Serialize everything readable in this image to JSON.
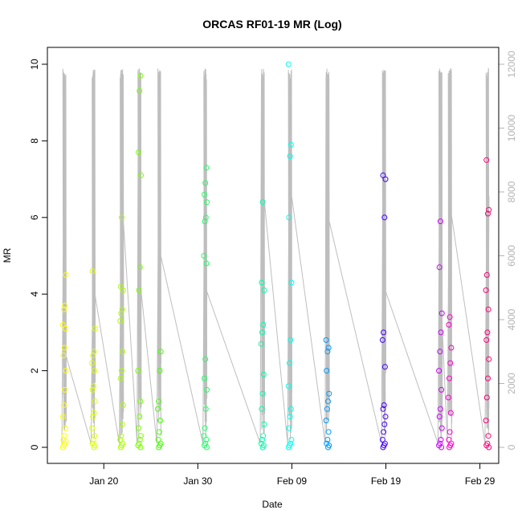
{
  "chart_data": {
    "type": "scatter",
    "title": "ORCAS RF01-19 MR (Log)",
    "xlabel": "Date",
    "ylabel": "MR",
    "ylim": [
      0,
      10
    ],
    "y2lim": [
      0,
      12000
    ],
    "y_ticks": [
      0,
      2,
      4,
      6,
      8,
      10
    ],
    "y2_ticks": [
      0,
      2000,
      4000,
      6000,
      8000,
      10000,
      12000
    ],
    "x_range": [
      "2016-01-14",
      "2016-03-02"
    ],
    "x_ticks": [
      {
        "date": "2016-01-20",
        "label": "Jan 20"
      },
      {
        "date": "2016-01-30",
        "label": "Jan 30"
      },
      {
        "date": "2016-02-09",
        "label": "Feb 09"
      },
      {
        "date": "2016-02-19",
        "label": "Feb 19"
      },
      {
        "date": "2016-02-29",
        "label": "Feb 29"
      }
    ],
    "altitude_line_color": "#bebebe",
    "flights": [
      {
        "date": "2016-01-15.8",
        "color": "#ffff00",
        "values": [
          0,
          0.05,
          0.1,
          0.15,
          0.2,
          0.3,
          0.5,
          0.8,
          1.1,
          1.5,
          2.0,
          2.4,
          2.6,
          3.1,
          3.2,
          3.6,
          3.7,
          4.5
        ]
      },
      {
        "date": "2016-01-18.9",
        "color": "#ddff00",
        "values": [
          0,
          0.05,
          0.1,
          0.2,
          0.3,
          0.5,
          0.8,
          0.9,
          1.2,
          1.5,
          1.6,
          2.0,
          2.2,
          2.4,
          2.5,
          3.1,
          4.6
        ]
      },
      {
        "date": "2016-01-21.9",
        "color": "#aaff00",
        "values": [
          0,
          0.05,
          0.1,
          0.2,
          0.3,
          0.6,
          1.1,
          1.8,
          2.0,
          2.5,
          3.3,
          3.5,
          3.6,
          4.1,
          4.2,
          6.0
        ]
      },
      {
        "date": "2016-01-23.8",
        "color": "#77ff00",
        "values": [
          0,
          0.05,
          0.1,
          0.2,
          0.3,
          0.5,
          0.8,
          1.2,
          2.0,
          4.1,
          4.7,
          7.1,
          7.7,
          9.3,
          9.7
        ]
      },
      {
        "date": "2016-01-25.9",
        "color": "#44ff00",
        "values": [
          0,
          0.05,
          0.1,
          0.2,
          0.4,
          0.7,
          1.0,
          1.2,
          2.0,
          2.5
        ]
      },
      {
        "date": "2016-01-30.8",
        "color": "#22ff66",
        "values": [
          0,
          0.05,
          0.1,
          0.2,
          0.3,
          0.5,
          1.0,
          1.5,
          1.8,
          2.3,
          4.8,
          5.0,
          5.9,
          6.0,
          6.4,
          6.6,
          6.9,
          7.3
        ]
      },
      {
        "date": "2016-02-05.9",
        "color": "#00ffaa",
        "values": [
          0,
          0.05,
          0.1,
          0.2,
          0.3,
          0.6,
          1.0,
          1.4,
          1.9,
          2.7,
          3.0,
          3.2,
          4.1,
          4.3,
          6.4
        ]
      },
      {
        "date": "2016-02-08.8",
        "color": "#00ffee",
        "values": [
          0,
          0.05,
          0.1,
          0.2,
          0.5,
          0.8,
          1.0,
          1.6,
          2.2,
          2.8,
          4.3,
          6.0,
          7.6,
          7.9,
          10.0
        ]
      },
      {
        "date": "2016-02-12.8",
        "color": "#0099ff",
        "values": [
          0,
          0.05,
          0.1,
          0.2,
          0.4,
          0.7,
          1.0,
          1.2,
          1.4,
          2.0,
          2.5,
          2.6,
          2.8
        ]
      },
      {
        "date": "2016-02-18.8",
        "color": "#4400ff",
        "values": [
          0,
          0.05,
          0.1,
          0.2,
          0.4,
          0.6,
          0.8,
          1.0,
          1.1,
          2.1,
          2.8,
          3.0,
          6.0,
          7.0,
          7.1
        ]
      },
      {
        "date": "2016-02-24.8",
        "color": "#cc00ff",
        "values": [
          0,
          0.05,
          0.1,
          0.2,
          0.5,
          0.8,
          1.0,
          1.5,
          2.0,
          2.5,
          3.0,
          3.5,
          4.7,
          5.9
        ]
      },
      {
        "date": "2016-02-25.8",
        "color": "#ff00cc",
        "values": [
          0,
          0.05,
          0.1,
          0.2,
          0.4,
          0.9,
          1.3,
          1.8,
          2.2,
          2.6,
          3.2,
          3.4
        ]
      },
      {
        "date": "2016-02-29.8",
        "color": "#ff0077",
        "values": [
          0,
          0.05,
          0.1,
          0.3,
          0.7,
          1.3,
          1.8,
          2.3,
          2.8,
          3.0,
          3.6,
          4.1,
          4.5,
          6.1,
          6.2,
          7.5
        ]
      }
    ]
  }
}
